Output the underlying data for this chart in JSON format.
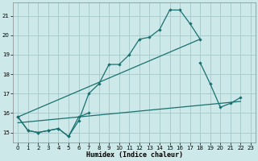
{
  "xlabel": "Humidex (Indice chaleur)",
  "background_color": "#cce8e8",
  "grid_color": "#aacccc",
  "line_color": "#1a7070",
  "xlim": [
    -0.5,
    23.5
  ],
  "ylim": [
    14.5,
    21.7
  ],
  "yticks": [
    15,
    16,
    17,
    18,
    19,
    20,
    21
  ],
  "xticks": [
    0,
    1,
    2,
    3,
    4,
    5,
    6,
    7,
    8,
    9,
    10,
    11,
    12,
    13,
    14,
    15,
    16,
    17,
    18,
    19,
    20,
    21,
    22,
    23
  ],
  "series": [
    {
      "x": [
        0,
        1,
        2,
        3,
        4,
        5,
        6,
        7,
        8,
        9,
        10,
        11,
        12,
        13,
        14,
        15,
        16,
        17,
        18
      ],
      "y": [
        15.8,
        15.1,
        15.0,
        15.1,
        15.2,
        14.8,
        15.6,
        17.0,
        17.5,
        18.5,
        18.5,
        19.0,
        19.8,
        19.9,
        20.3,
        21.3,
        21.3,
        20.6,
        19.8
      ],
      "has_markers": true
    },
    {
      "segments": [
        {
          "x": [
            0,
            1,
            2,
            3,
            4,
            5,
            6,
            7
          ],
          "y": [
            15.8,
            15.1,
            15.0,
            15.1,
            15.2,
            14.8,
            15.8,
            16.0
          ]
        },
        {
          "x": [
            18,
            19,
            20,
            21,
            22
          ],
          "y": [
            18.6,
            17.5,
            16.3,
            16.5,
            16.8
          ]
        }
      ],
      "has_markers": true
    },
    {
      "x": [
        0,
        22
      ],
      "y": [
        15.5,
        16.6
      ],
      "has_markers": false
    },
    {
      "x": [
        0,
        18
      ],
      "y": [
        15.8,
        19.8
      ],
      "has_markers": false
    }
  ]
}
